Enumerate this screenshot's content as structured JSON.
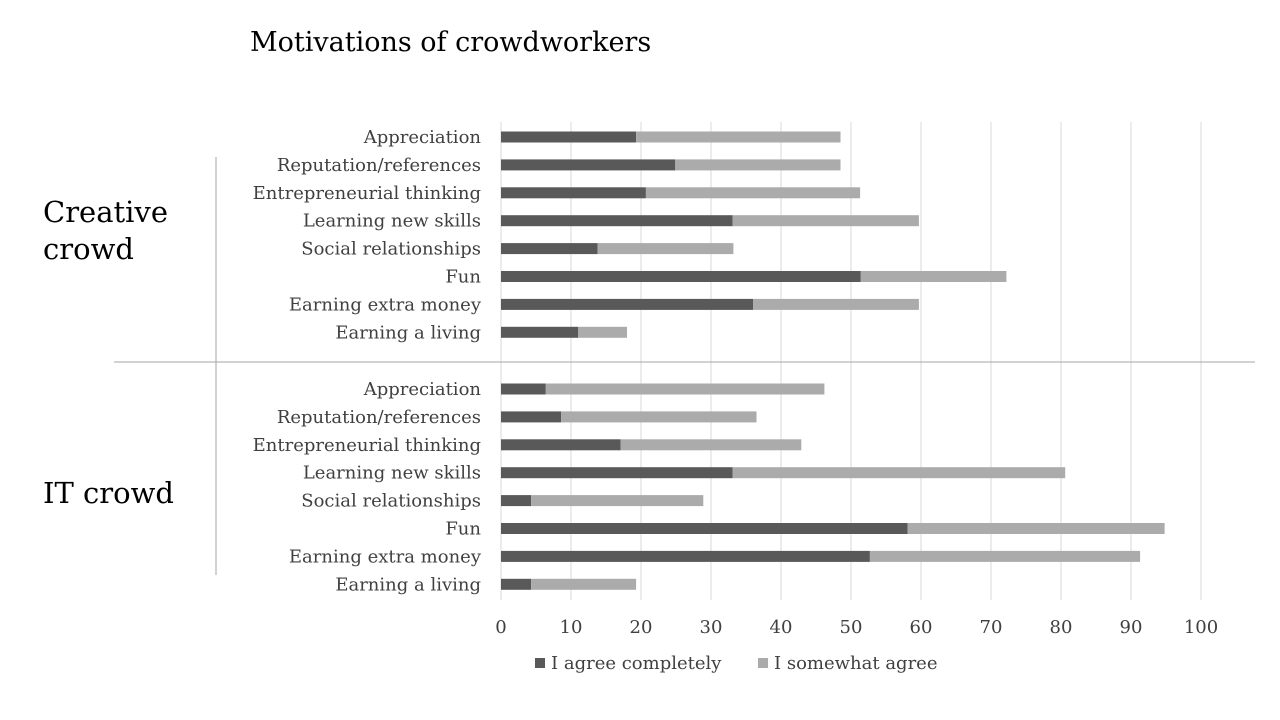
{
  "chart_data": {
    "type": "bar",
    "orientation": "horizontal",
    "stacked": true,
    "title": "Motivations of crowdworkers",
    "xlim": [
      0,
      100
    ],
    "xticks": [
      0,
      10,
      20,
      30,
      40,
      50,
      60,
      70,
      80,
      90,
      100
    ],
    "grid": true,
    "legend_position": "bottom",
    "series": [
      {
        "name": "I agree completely",
        "color": "#595959"
      },
      {
        "name": "I somewhat agree",
        "color": "#ababab"
      }
    ],
    "groups": [
      {
        "label_lines": [
          "Creative",
          "crowd"
        ],
        "categories": [
          "Appreciation",
          "Reputation/references",
          "Entrepreneurial thinking",
          "Learning new skills",
          "Social relationships",
          "Fun",
          "Earning extra money",
          "Earning a living"
        ],
        "values": [
          [
            19.3,
            29.2
          ],
          [
            24.9,
            23.6
          ],
          [
            20.7,
            30.6
          ],
          [
            33.1,
            26.6
          ],
          [
            13.8,
            19.4
          ],
          [
            51.4,
            20.8
          ],
          [
            36.0,
            23.7
          ],
          [
            11.0,
            7.0
          ]
        ]
      },
      {
        "label_lines": [
          "IT crowd"
        ],
        "categories": [
          "Appreciation",
          "Reputation/references",
          "Entrepreneurial thinking",
          "Learning new skills",
          "Social relationships",
          "Fun",
          "Earning extra money",
          "Earning a living"
        ],
        "values": [
          [
            6.4,
            39.8
          ],
          [
            8.6,
            27.9
          ],
          [
            17.1,
            25.8
          ],
          [
            33.1,
            47.5
          ],
          [
            4.3,
            24.6
          ],
          [
            58.1,
            36.7
          ],
          [
            52.7,
            38.6
          ],
          [
            4.3,
            15.0
          ]
        ]
      }
    ]
  }
}
